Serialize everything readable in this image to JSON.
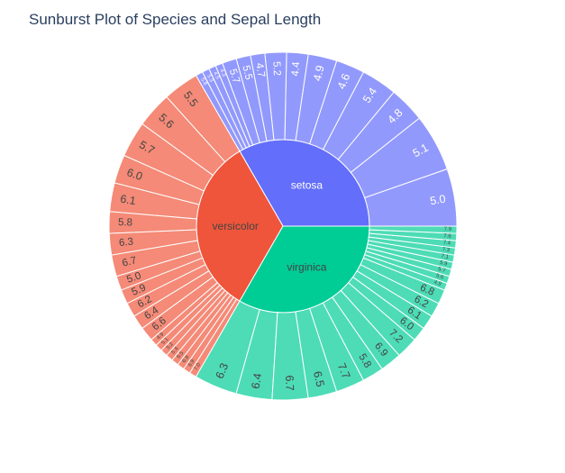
{
  "chart_data": {
    "type": "sunburst",
    "title": "Sunburst Plot of Species and Sepal Length",
    "colors": {
      "setosa": "#636efa",
      "versicolor": "#ef553b",
      "virginica": "#00cc96",
      "setosa_outer": "#9299fc",
      "versicolor_outer": "#f48a77",
      "virginica_outer": "#4ddcb6",
      "label_light": "#ffffff",
      "label_dark": "#444444"
    },
    "species": [
      {
        "name": "setosa",
        "count": 50,
        "children": [
          {
            "label": "5.0",
            "count": 8
          },
          {
            "label": "5.1",
            "count": 8
          },
          {
            "label": "4.8",
            "count": 5
          },
          {
            "label": "5.4",
            "count": 5
          },
          {
            "label": "4.6",
            "count": 4
          },
          {
            "label": "4.9",
            "count": 4
          },
          {
            "label": "4.4",
            "count": 3
          },
          {
            "label": "5.2",
            "count": 3
          },
          {
            "label": "4.7",
            "count": 2
          },
          {
            "label": "5.5",
            "count": 2
          },
          {
            "label": "5.7",
            "count": 2
          },
          {
            "label": "4.3",
            "count": 1
          },
          {
            "label": "4.5",
            "count": 1
          },
          {
            "label": "5.3",
            "count": 1
          },
          {
            "label": "5.8",
            "count": 1
          }
        ]
      },
      {
        "name": "versicolor",
        "count": 50,
        "children": [
          {
            "label": "5.5",
            "count": 5
          },
          {
            "label": "5.6",
            "count": 5
          },
          {
            "label": "5.7",
            "count": 5
          },
          {
            "label": "6.0",
            "count": 4
          },
          {
            "label": "6.1",
            "count": 4
          },
          {
            "label": "5.8",
            "count": 3
          },
          {
            "label": "6.3",
            "count": 3
          },
          {
            "label": "6.7",
            "count": 3
          },
          {
            "label": "5.0",
            "count": 2
          },
          {
            "label": "5.9",
            "count": 2
          },
          {
            "label": "6.2",
            "count": 2
          },
          {
            "label": "6.4",
            "count": 2
          },
          {
            "label": "6.6",
            "count": 2
          },
          {
            "label": "4.9",
            "count": 1
          },
          {
            "label": "5.1",
            "count": 1
          },
          {
            "label": "5.2",
            "count": 1
          },
          {
            "label": "5.4",
            "count": 1
          },
          {
            "label": "6.5",
            "count": 1
          },
          {
            "label": "6.8",
            "count": 1
          },
          {
            "label": "6.9",
            "count": 1
          },
          {
            "label": "7.0",
            "count": 1
          }
        ]
      },
      {
        "name": "virginica",
        "count": 50,
        "children": [
          {
            "label": "6.3",
            "count": 6
          },
          {
            "label": "6.4",
            "count": 5
          },
          {
            "label": "6.7",
            "count": 5
          },
          {
            "label": "6.5",
            "count": 4
          },
          {
            "label": "7.7",
            "count": 4
          },
          {
            "label": "5.8",
            "count": 3
          },
          {
            "label": "6.9",
            "count": 3
          },
          {
            "label": "7.2",
            "count": 3
          },
          {
            "label": "6.0",
            "count": 2
          },
          {
            "label": "6.1",
            "count": 2
          },
          {
            "label": "6.2",
            "count": 2
          },
          {
            "label": "6.8",
            "count": 2
          },
          {
            "label": "4.9",
            "count": 1
          },
          {
            "label": "5.6",
            "count": 1
          },
          {
            "label": "5.7",
            "count": 1
          },
          {
            "label": "5.9",
            "count": 1
          },
          {
            "label": "7.1",
            "count": 1
          },
          {
            "label": "7.3",
            "count": 1
          },
          {
            "label": "7.4",
            "count": 1
          },
          {
            "label": "7.6",
            "count": 1
          },
          {
            "label": "7.9",
            "count": 1
          }
        ]
      }
    ]
  }
}
